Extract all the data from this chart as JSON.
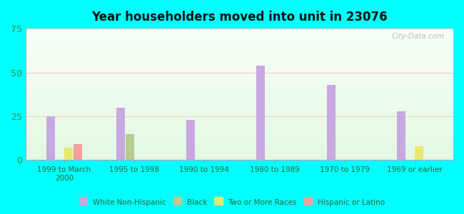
{
  "title": "Year householders moved into unit in 23076",
  "categories": [
    "1999 to March\n2000",
    "1995 to 1998",
    "1990 to 1994",
    "1980 to 1989",
    "1970 to 1979",
    "1969 or earlier"
  ],
  "series": {
    "White Non-Hispanic": [
      25,
      30,
      23,
      54,
      43,
      28
    ],
    "Black": [
      0,
      15,
      0,
      0,
      0,
      0
    ],
    "Two or More Races": [
      7,
      0,
      0,
      0,
      0,
      8
    ],
    "Hispanic or Latino": [
      9,
      0,
      0,
      0,
      0,
      0
    ]
  },
  "colors": {
    "White Non-Hispanic": "#c8a8e0",
    "Black": "#b8cc90",
    "Two or More Races": "#e8e870",
    "Hispanic or Latino": "#f0a0a0"
  },
  "ylim": [
    0,
    75
  ],
  "yticks": [
    0,
    25,
    50,
    75
  ],
  "background_color": "#00FFFF",
  "bar_width": 0.12,
  "watermark": "City-Data.com",
  "grid_color": "#ffaaaa",
  "grid_linewidth": 0.5,
  "tick_color": "#448844",
  "label_color": "#336633",
  "title_color": "#111111"
}
